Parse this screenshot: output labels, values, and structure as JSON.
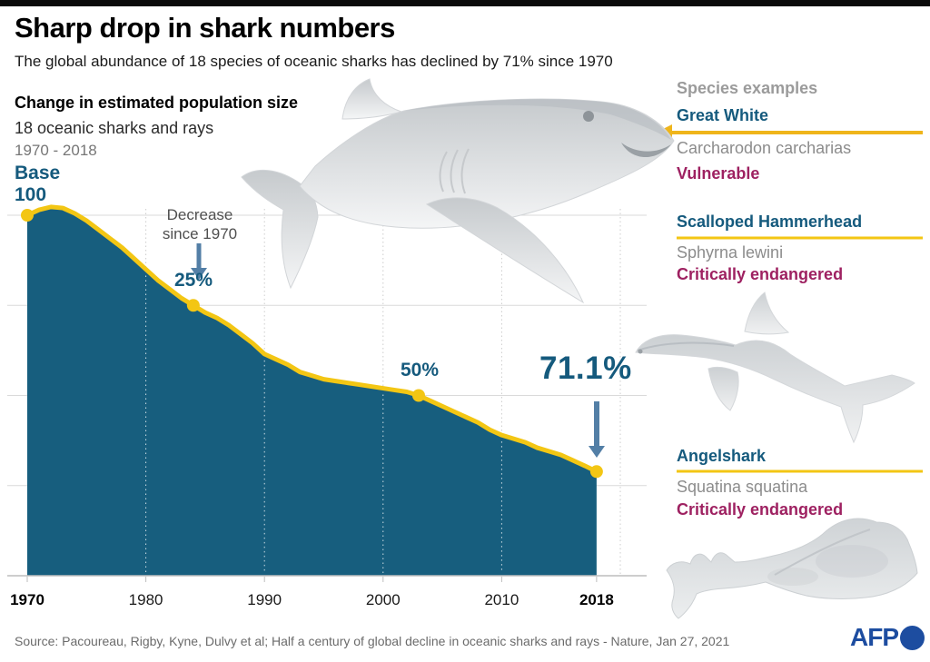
{
  "header": {
    "title": "Sharp drop in shark numbers",
    "subtitle": "The global abundance of 18 species of oceanic sharks has declined by 71% since 1970"
  },
  "chart_labels": {
    "title": "Change in estimated population size",
    "sub": "18 oceanic sharks and rays",
    "range": "1970 - 2018"
  },
  "chart_data": {
    "type": "area",
    "title": "Change in estimated population size",
    "subtitle": "18 oceanic sharks and rays",
    "period": "1970 - 2018",
    "ylim": [
      0,
      105
    ],
    "xlim": [
      1970,
      2021
    ],
    "x": [
      1970,
      1971,
      1972,
      1973,
      1974,
      1975,
      1976,
      1977,
      1978,
      1979,
      1980,
      1981,
      1982,
      1983,
      1984,
      1985,
      1986,
      1987,
      1988,
      1989,
      1990,
      1991,
      1992,
      1993,
      1994,
      1995,
      1996,
      1997,
      1998,
      1999,
      2000,
      2001,
      2002,
      2003,
      2004,
      2005,
      2006,
      2007,
      2008,
      2009,
      2010,
      2011,
      2012,
      2013,
      2014,
      2015,
      2016,
      2017,
      2018
    ],
    "values": [
      100,
      101.5,
      102.3,
      102,
      100.5,
      98.5,
      96,
      93.5,
      91,
      88,
      85,
      82,
      79.5,
      77,
      75,
      73,
      71.5,
      69.5,
      67,
      64.5,
      61.5,
      60,
      58.5,
      56.5,
      55.5,
      54.5,
      54,
      53.5,
      53,
      52.5,
      52,
      51.5,
      51,
      50,
      48.5,
      47,
      45.5,
      44,
      42.5,
      40.5,
      39,
      38,
      37,
      35.5,
      34.5,
      33.5,
      32,
      30.5,
      28.9
    ],
    "markers": [
      {
        "x": 1970,
        "y": 100,
        "label": "Base 100"
      },
      {
        "x": 1984,
        "y": 75,
        "label": "25%"
      },
      {
        "x": 2003,
        "y": 50,
        "label": "50%"
      },
      {
        "x": 2018,
        "y": 28.9,
        "label": "71.1%"
      }
    ],
    "xticks": [
      "1970",
      "1980",
      "1990",
      "2000",
      "2010",
      "2018"
    ],
    "xtick_years": [
      1970,
      1980,
      1990,
      2000,
      2010,
      2018
    ],
    "ygrid": [
      25,
      50,
      75,
      100
    ],
    "xgrid": [
      1980,
      1990,
      2000,
      2010,
      2020
    ],
    "annotations": {
      "base": [
        "Base",
        "100"
      ],
      "decrease": [
        "Decrease",
        "since 1970"
      ],
      "pct25": "25%",
      "pct50": "50%",
      "final": "71.1%"
    },
    "legend": "none",
    "grid": "on"
  },
  "species_panel": {
    "heading": "Species examples",
    "species": [
      {
        "name": "Great White",
        "latin": "Carcharodon carcharias",
        "status": "Vulnerable"
      },
      {
        "name": "Scalloped Hammerhead",
        "latin": "Sphyrna lewini",
        "status": "Critically endangered"
      },
      {
        "name": "Angelshark",
        "latin": "Squatina squatina",
        "status": "Critically endangered"
      }
    ]
  },
  "footer": {
    "source": "Source: Pacoureau, Rigby, Kyne, Dulvy et al; Half a century of global decline in oceanic sharks and rays - Nature, Jan 27, 2021",
    "logo_text": "AFP"
  },
  "icons": [
    "down-arrow-icon",
    "left-arrow-icon",
    "great-white-shark-illustration",
    "hammerhead-shark-illustration",
    "angelshark-illustration",
    "afp-logo"
  ],
  "colors": {
    "area_fill": "#175e7e",
    "line_yellow": "#f3c614",
    "accent_yellow": "#efb51b",
    "teal_text": "#155a7d",
    "magenta": "#9e2161",
    "steel_arrow": "#537fa6",
    "grid": "#dadada",
    "grid_dotted": "#cccccc",
    "axis": "#bdbdbd",
    "afp_blue": "#1d4da0",
    "topbar": "#0b0b0b"
  }
}
